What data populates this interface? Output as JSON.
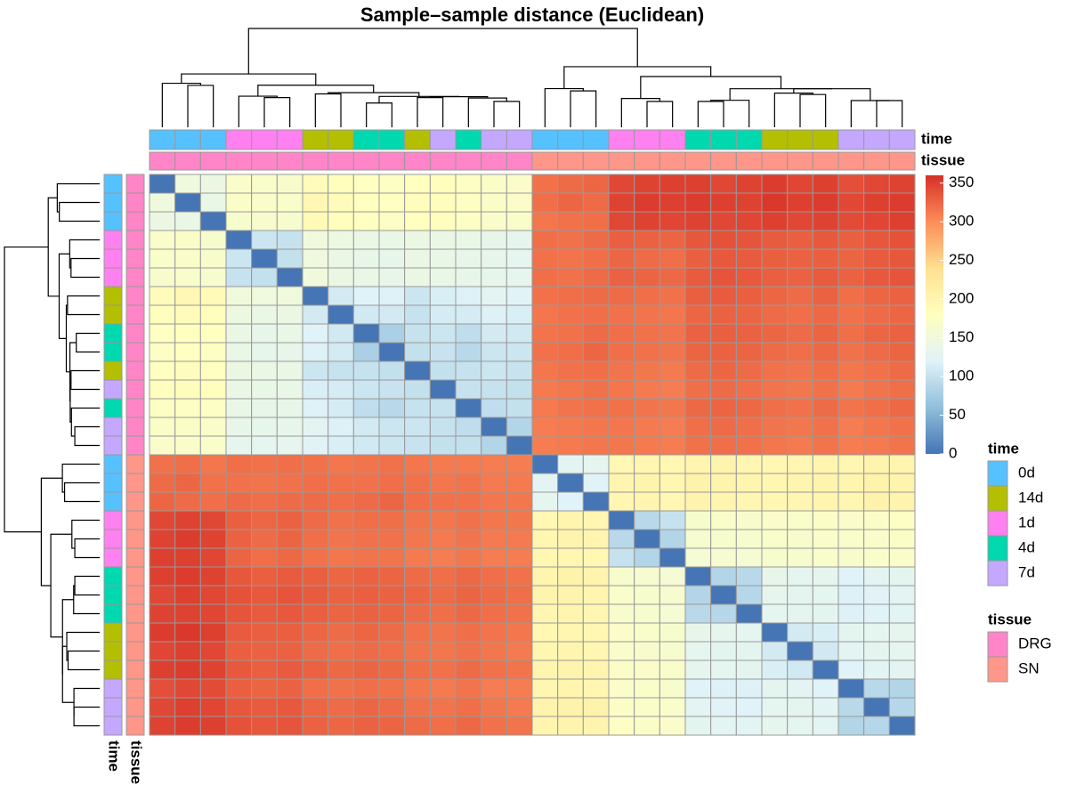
{
  "chart_data": {
    "type": "heatmap",
    "title": "Sample–sample distance (Euclidean)",
    "values": [
      [
        0,
        148,
        142,
        170,
        168,
        166,
        185,
        182,
        178,
        176,
        180,
        182,
        175,
        172,
        170,
        318,
        322,
        325,
        345,
        348,
        350,
        350,
        345,
        348,
        352,
        346,
        350,
        340,
        345,
        348
      ],
      [
        148,
        0,
        138,
        172,
        170,
        168,
        195,
        185,
        180,
        178,
        183,
        184,
        176,
        172,
        170,
        320,
        325,
        322,
        348,
        352,
        350,
        352,
        350,
        348,
        355,
        350,
        352,
        345,
        350,
        352
      ],
      [
        142,
        138,
        0,
        165,
        166,
        164,
        190,
        182,
        178,
        176,
        180,
        182,
        174,
        170,
        168,
        315,
        318,
        320,
        345,
        348,
        346,
        348,
        345,
        346,
        350,
        345,
        348,
        342,
        346,
        350
      ],
      [
        170,
        172,
        165,
        0,
        105,
        100,
        150,
        145,
        140,
        138,
        142,
        140,
        138,
        135,
        132,
        320,
        318,
        322,
        330,
        328,
        326,
        335,
        338,
        336,
        332,
        330,
        334,
        330,
        335,
        338
      ],
      [
        168,
        170,
        166,
        105,
        0,
        98,
        148,
        140,
        135,
        134,
        140,
        138,
        136,
        134,
        130,
        318,
        316,
        320,
        325,
        322,
        320,
        330,
        334,
        332,
        330,
        328,
        330,
        326,
        332,
        335
      ],
      [
        166,
        168,
        164,
        100,
        98,
        0,
        150,
        142,
        138,
        136,
        140,
        138,
        136,
        134,
        132,
        320,
        318,
        322,
        328,
        326,
        324,
        332,
        336,
        334,
        330,
        328,
        332,
        328,
        334,
        336
      ],
      [
        185,
        195,
        190,
        150,
        148,
        150,
        0,
        110,
        120,
        118,
        105,
        115,
        118,
        125,
        122,
        318,
        320,
        322,
        322,
        320,
        318,
        330,
        332,
        330,
        325,
        322,
        328,
        320,
        325,
        328
      ],
      [
        182,
        185,
        182,
        145,
        140,
        142,
        110,
        0,
        108,
        110,
        100,
        112,
        112,
        118,
        115,
        315,
        318,
        320,
        318,
        316,
        315,
        325,
        328,
        326,
        322,
        320,
        324,
        318,
        322,
        325
      ],
      [
        178,
        180,
        178,
        140,
        135,
        138,
        120,
        108,
        0,
        80,
        100,
        105,
        95,
        110,
        108,
        316,
        318,
        322,
        320,
        318,
        316,
        328,
        330,
        328,
        325,
        322,
        326,
        320,
        325,
        328
      ],
      [
        176,
        178,
        176,
        138,
        134,
        136,
        118,
        110,
        80,
        0,
        98,
        102,
        90,
        105,
        105,
        318,
        320,
        325,
        320,
        318,
        316,
        326,
        328,
        326,
        322,
        320,
        324,
        318,
        322,
        326
      ],
      [
        180,
        183,
        180,
        142,
        140,
        140,
        105,
        100,
        100,
        98,
        0,
        98,
        100,
        105,
        102,
        315,
        318,
        320,
        316,
        314,
        312,
        322,
        325,
        322,
        318,
        316,
        320,
        315,
        318,
        322
      ],
      [
        182,
        184,
        182,
        140,
        138,
        138,
        115,
        112,
        105,
        102,
        98,
        0,
        100,
        100,
        98,
        312,
        315,
        318,
        315,
        312,
        310,
        320,
        322,
        320,
        316,
        314,
        318,
        312,
        316,
        320
      ],
      [
        175,
        176,
        174,
        138,
        136,
        136,
        118,
        112,
        95,
        90,
        100,
        100,
        0,
        95,
        98,
        312,
        316,
        318,
        318,
        316,
        314,
        324,
        326,
        324,
        320,
        318,
        322,
        316,
        320,
        324
      ],
      [
        172,
        172,
        170,
        135,
        134,
        134,
        125,
        118,
        110,
        105,
        105,
        100,
        95,
        0,
        85,
        310,
        312,
        315,
        315,
        312,
        310,
        320,
        322,
        320,
        316,
        314,
        318,
        310,
        314,
        318
      ],
      [
        170,
        170,
        168,
        132,
        130,
        132,
        122,
        115,
        108,
        105,
        102,
        98,
        98,
        85,
        0,
        310,
        312,
        314,
        314,
        312,
        310,
        318,
        320,
        318,
        315,
        312,
        316,
        310,
        312,
        316
      ],
      [
        318,
        320,
        315,
        320,
        318,
        320,
        318,
        315,
        316,
        318,
        315,
        312,
        312,
        310,
        310,
        0,
        125,
        130,
        195,
        198,
        196,
        200,
        202,
        198,
        196,
        198,
        200,
        198,
        202,
        200
      ],
      [
        322,
        325,
        318,
        318,
        316,
        318,
        320,
        318,
        318,
        320,
        318,
        315,
        316,
        312,
        312,
        125,
        0,
        120,
        200,
        202,
        198,
        205,
        202,
        200,
        198,
        200,
        202,
        200,
        205,
        202
      ],
      [
        325,
        322,
        320,
        322,
        320,
        322,
        322,
        320,
        322,
        325,
        320,
        318,
        318,
        315,
        314,
        130,
        120,
        0,
        198,
        200,
        196,
        202,
        200,
        198,
        196,
        198,
        200,
        198,
        204,
        202
      ],
      [
        345,
        348,
        345,
        330,
        325,
        328,
        322,
        318,
        320,
        320,
        316,
        315,
        318,
        315,
        314,
        195,
        200,
        198,
        0,
        90,
        100,
        165,
        168,
        166,
        170,
        168,
        172,
        170,
        172,
        175
      ],
      [
        348,
        352,
        348,
        328,
        322,
        326,
        320,
        316,
        318,
        318,
        314,
        312,
        316,
        312,
        312,
        198,
        202,
        200,
        90,
        0,
        85,
        162,
        165,
        164,
        168,
        166,
        170,
        168,
        170,
        172
      ],
      [
        350,
        350,
        346,
        326,
        320,
        324,
        318,
        315,
        316,
        316,
        312,
        310,
        314,
        310,
        310,
        196,
        198,
        196,
        100,
        85,
        0,
        160,
        162,
        160,
        165,
        164,
        168,
        165,
        168,
        170
      ],
      [
        350,
        352,
        348,
        335,
        330,
        332,
        330,
        325,
        328,
        326,
        322,
        320,
        324,
        320,
        318,
        200,
        205,
        202,
        165,
        162,
        160,
        0,
        85,
        90,
        135,
        130,
        132,
        120,
        125,
        128
      ],
      [
        345,
        350,
        345,
        338,
        334,
        336,
        332,
        328,
        330,
        328,
        325,
        322,
        326,
        322,
        320,
        202,
        202,
        200,
        168,
        165,
        162,
        85,
        0,
        88,
        132,
        128,
        130,
        118,
        122,
        126
      ],
      [
        348,
        348,
        346,
        336,
        332,
        334,
        330,
        326,
        328,
        326,
        322,
        320,
        324,
        320,
        318,
        198,
        200,
        198,
        166,
        164,
        160,
        90,
        88,
        0,
        130,
        128,
        128,
        118,
        120,
        124
      ],
      [
        352,
        355,
        350,
        332,
        330,
        330,
        325,
        322,
        325,
        322,
        318,
        316,
        320,
        316,
        315,
        196,
        198,
        196,
        170,
        168,
        165,
        135,
        132,
        130,
        0,
        110,
        115,
        128,
        130,
        132
      ],
      [
        346,
        350,
        345,
        330,
        328,
        328,
        322,
        320,
        322,
        320,
        316,
        314,
        318,
        314,
        312,
        198,
        200,
        198,
        168,
        166,
        164,
        130,
        128,
        128,
        110,
        0,
        108,
        125,
        128,
        130
      ],
      [
        350,
        352,
        348,
        334,
        330,
        332,
        328,
        324,
        326,
        324,
        320,
        318,
        322,
        318,
        316,
        200,
        202,
        200,
        172,
        170,
        168,
        132,
        130,
        128,
        115,
        108,
        0,
        120,
        124,
        126
      ],
      [
        340,
        345,
        342,
        330,
        326,
        328,
        320,
        318,
        320,
        318,
        315,
        312,
        316,
        310,
        310,
        198,
        200,
        198,
        170,
        168,
        165,
        120,
        118,
        118,
        128,
        125,
        120,
        0,
        90,
        85
      ],
      [
        345,
        350,
        346,
        335,
        332,
        334,
        325,
        322,
        325,
        322,
        318,
        316,
        320,
        314,
        312,
        202,
        205,
        204,
        172,
        170,
        168,
        125,
        122,
        120,
        130,
        128,
        124,
        90,
        0,
        88
      ],
      [
        348,
        352,
        350,
        338,
        335,
        336,
        328,
        325,
        328,
        326,
        322,
        320,
        324,
        318,
        316,
        200,
        202,
        202,
        175,
        172,
        170,
        128,
        126,
        124,
        132,
        130,
        126,
        85,
        88,
        0
      ]
    ],
    "zlim": [
      0,
      360
    ],
    "zticks": [
      0,
      50,
      100,
      150,
      200,
      250,
      300,
      350
    ],
    "colorscale": [
      "#4575b4",
      "#91bfdb",
      "#e0f3f8",
      "#ffffbf",
      "#fee090",
      "#fc8d59",
      "#d73027"
    ],
    "border_color": "#999999",
    "annotations": [
      {
        "name": "time",
        "values": [
          "0d",
          "0d",
          "0d",
          "1d",
          "1d",
          "1d",
          "14d",
          "14d",
          "4d",
          "4d",
          "14d",
          "7d",
          "4d",
          "7d",
          "7d",
          "0d",
          "0d",
          "0d",
          "1d",
          "1d",
          "1d",
          "4d",
          "4d",
          "4d",
          "14d",
          "14d",
          "14d",
          "7d",
          "7d",
          "7d"
        ]
      },
      {
        "name": "tissue",
        "values": [
          "DRG",
          "DRG",
          "DRG",
          "DRG",
          "DRG",
          "DRG",
          "DRG",
          "DRG",
          "DRG",
          "DRG",
          "DRG",
          "DRG",
          "DRG",
          "DRG",
          "DRG",
          "SN",
          "SN",
          "SN",
          "SN",
          "SN",
          "SN",
          "SN",
          "SN",
          "SN",
          "SN",
          "SN",
          "SN",
          "SN",
          "SN",
          "SN"
        ]
      }
    ],
    "legends": [
      {
        "title": "time",
        "levels": [
          "0d",
          "14d",
          "1d",
          "4d",
          "7d"
        ],
        "colors": [
          "#56c1ff",
          "#b3bf00",
          "#ff80f0",
          "#00d8af",
          "#c4a8ff"
        ]
      },
      {
        "title": "tissue",
        "levels": [
          "DRG",
          "SN"
        ],
        "colors": [
          "#ff85c8",
          "#ff968a"
        ]
      }
    ]
  }
}
